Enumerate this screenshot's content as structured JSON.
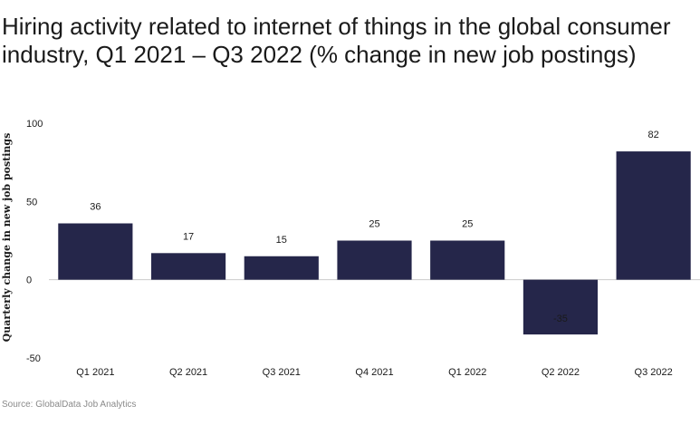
{
  "title": "Hiring activity related to internet of things in the global consumer industry, Q1 2021 – Q3 2022 (% change in new job postings)",
  "source": "Source: GlobalData Job Analytics",
  "colors": {
    "bar": "#25264a",
    "zero_line": "#cccccc"
  },
  "chart_data": {
    "type": "bar",
    "title": "Hiring activity related to internet of things in the global consumer industry, Q1 2021 – Q3 2022 (% change in new job postings)",
    "xlabel": "",
    "ylabel": "Quarterly change in new job postings",
    "categories": [
      "Q1 2021",
      "Q2 2021",
      "Q3 2021",
      "Q4 2021",
      "Q1 2022",
      "Q2 2022",
      "Q3 2022"
    ],
    "values": [
      36,
      17,
      15,
      25,
      25,
      -35,
      82
    ],
    "data_labels": [
      "36",
      "17",
      "15",
      "25",
      "25",
      "-35",
      "82"
    ],
    "ylim": [
      -50,
      100
    ],
    "yticks": [
      100,
      50,
      0,
      -50
    ],
    "ytick_labels": [
      "100",
      "50",
      "0",
      "-50"
    ],
    "grid": false,
    "legend": "none"
  }
}
